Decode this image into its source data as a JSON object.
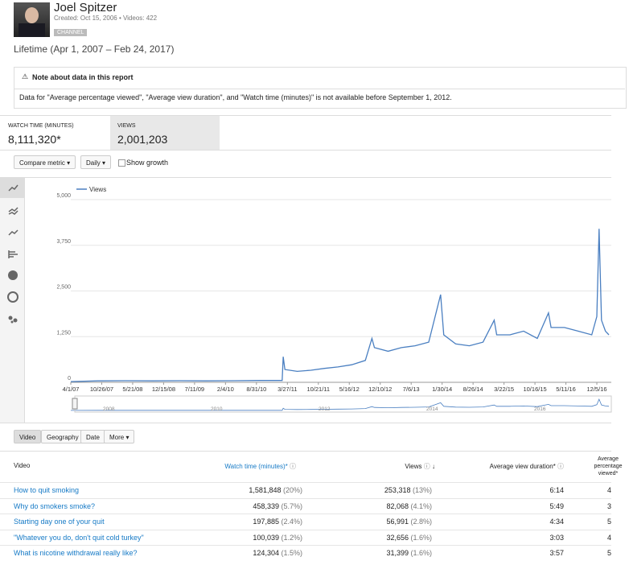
{
  "header": {
    "name": "Joel Spitzer",
    "created": "Created: Oct 15, 2006  •  Videos: 422",
    "badge": "CHANNEL",
    "range": "Lifetime (Apr 1, 2007 – Feb 24, 2017)"
  },
  "note": {
    "title": "Note about data in this report",
    "body": "Data for \"Average percentage viewed\", \"Average view duration\", and \"Watch time (minutes)\" is not available before September 1, 2012."
  },
  "metrics": [
    {
      "label": "WATCH TIME (MINUTES)",
      "value": "8,111,320*"
    },
    {
      "label": "VIEWS",
      "value": "2,001,203"
    }
  ],
  "controls": {
    "compare": "Compare metric",
    "interval": "Daily",
    "growth": "Show growth"
  },
  "chart_data": {
    "type": "line",
    "legend": "top-left",
    "grid": true,
    "x": [
      "4/1/07",
      "10/1/07",
      "4/1/08",
      "10/1/08",
      "4/1/09",
      "10/1/09",
      "4/1/10",
      "10/1/10",
      "2/20/11",
      "2/27/11",
      "3/10/11",
      "6/1/11",
      "9/1/11",
      "12/1/11",
      "3/1/12",
      "6/1/12",
      "9/1/12",
      "10/15/12",
      "11/1/12",
      "2/1/13",
      "5/1/13",
      "8/1/13",
      "11/1/13",
      "1/20/14",
      "2/10/14",
      "5/1/14",
      "8/1/14",
      "11/1/14",
      "1/15/15",
      "2/1/15",
      "5/1/15",
      "8/1/15",
      "11/1/15",
      "1/15/16",
      "2/1/16",
      "5/1/16",
      "8/1/16",
      "11/1/16",
      "12/5/16",
      "12/20/16",
      "1/5/17",
      "2/1/17",
      "2/24/17"
    ],
    "series": [
      {
        "name": "Views",
        "color": "#4a7fc1",
        "values": [
          20,
          40,
          45,
          40,
          45,
          40,
          45,
          50,
          50,
          700,
          350,
          300,
          330,
          380,
          420,
          480,
          600,
          1200,
          950,
          850,
          950,
          1000,
          1100,
          2400,
          1300,
          1050,
          1000,
          1100,
          1700,
          1300,
          1300,
          1400,
          1200,
          1900,
          1500,
          1500,
          1400,
          1300,
          1800,
          4200,
          1700,
          1400,
          1300
        ]
      }
    ],
    "xlim": [
      "4/1/07",
      "2/24/17"
    ],
    "xticks": [
      "4/1/07",
      "10/26/07",
      "5/21/08",
      "12/15/08",
      "7/11/09",
      "2/4/10",
      "8/31/10",
      "3/27/11",
      "10/21/11",
      "5/16/12",
      "12/10/12",
      "7/6/13",
      "1/30/14",
      "8/26/14",
      "3/22/15",
      "10/16/15",
      "5/11/16",
      "12/5/16"
    ],
    "ylim": [
      0,
      5000
    ],
    "yticks": [
      0,
      {
        "value": 1250,
        "label": "1,250"
      },
      {
        "value": 2500,
        "label": "2,500"
      },
      {
        "value": 3750,
        "label": "3,750"
      },
      {
        "value": 5000,
        "label": "5,000"
      }
    ]
  },
  "navigator": [
    "2008",
    "2010",
    "2012",
    "2014",
    "2016"
  ],
  "tabs": [
    "Video",
    "Geography",
    "Date",
    "More"
  ],
  "table": {
    "columns": [
      "Video",
      "Watch time (minutes)*",
      "Views",
      "Average view duration*",
      "Average percentage viewed*"
    ],
    "rows": [
      [
        "How to quit smoking",
        "1,581,848",
        "(20%)",
        "253,318",
        "(13%)",
        "6:14",
        "4"
      ],
      [
        "Why do smokers smoke?",
        "458,339",
        "(5.7%)",
        "82,068",
        "(4.1%)",
        "5:49",
        "3"
      ],
      [
        "Starting day one of your quit",
        "197,885",
        "(2.4%)",
        "56,991",
        "(2.8%)",
        "4:34",
        "5"
      ],
      [
        "\"Whatever you do, don't quit cold turkey\"",
        "100,039",
        "(1.2%)",
        "32,656",
        "(1.6%)",
        "3:03",
        "4"
      ],
      [
        "What is nicotine withdrawal really like?",
        "124,304",
        "(1.5%)",
        "31,399",
        "(1.6%)",
        "3:57",
        "5"
      ]
    ]
  }
}
